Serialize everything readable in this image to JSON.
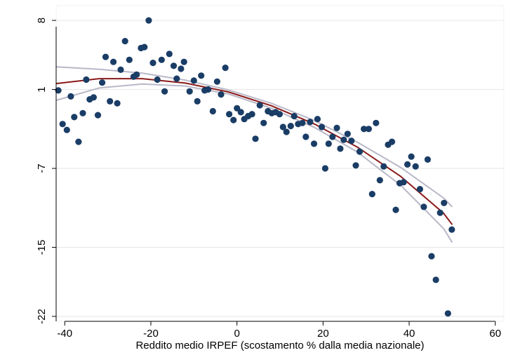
{
  "chart_data": {
    "type": "scatter",
    "title": "",
    "xlabel": "Reddito medio IRPEF (scostamento % dalla media nazionale)",
    "ylabel": "",
    "xlim": [
      -42,
      62
    ],
    "ylim": [
      -22.5,
      9.5
    ],
    "x_ticks": [
      -40,
      -20,
      0,
      20,
      40,
      60
    ],
    "y_ticks": [
      8,
      1,
      -7,
      -15,
      -22
    ],
    "grid": "horizontal",
    "legend": "none",
    "colors": {
      "points": "#1a3d66",
      "fit": "#8b1a1a",
      "ci": "#b8b8c8",
      "grid": "#e6e6e6"
    },
    "series": [
      {
        "kind": "points",
        "points": [
          [
            -41.5,
            0.9
          ],
          [
            -40.5,
            -2.5
          ],
          [
            -39.5,
            -3.1
          ],
          [
            -38.6,
            0.3
          ],
          [
            -37.8,
            -1.8
          ],
          [
            -36.8,
            -4.3
          ],
          [
            -35.8,
            -1.4
          ],
          [
            -35.0,
            2.0
          ],
          [
            -34.2,
            0.0
          ],
          [
            -33.3,
            0.2
          ],
          [
            -32.3,
            -1.6
          ],
          [
            -31.3,
            1.7
          ],
          [
            -30.5,
            4.3
          ],
          [
            -29.5,
            -0.2
          ],
          [
            -28.7,
            3.8
          ],
          [
            -27.8,
            -0.4
          ],
          [
            -27.0,
            3.0
          ],
          [
            -26.0,
            5.9
          ],
          [
            -25.0,
            4.0
          ],
          [
            -24.0,
            2.3
          ],
          [
            -23.3,
            2.5
          ],
          [
            -22.3,
            5.2
          ],
          [
            -21.5,
            5.3
          ],
          [
            -20.5,
            8.0
          ],
          [
            -19.5,
            3.7
          ],
          [
            -18.5,
            2.0
          ],
          [
            -17.5,
            4.0
          ],
          [
            -16.8,
            0.8
          ],
          [
            -15.7,
            4.6
          ],
          [
            -14.7,
            3.4
          ],
          [
            -14.0,
            2.1
          ],
          [
            -13.0,
            3.1
          ],
          [
            -12.3,
            3.8
          ],
          [
            -11.0,
            0.8
          ],
          [
            -10.0,
            1.9
          ],
          [
            -9.2,
            -0.2
          ],
          [
            -8.3,
            2.4
          ],
          [
            -7.5,
            0.9
          ],
          [
            -6.7,
            1.0
          ],
          [
            -5.6,
            -1.2
          ],
          [
            -4.6,
            1.8
          ],
          [
            -3.7,
            0.5
          ],
          [
            -2.7,
            3.2
          ],
          [
            -1.8,
            -1.5
          ],
          [
            -0.8,
            -2.1
          ],
          [
            0.0,
            -0.9
          ],
          [
            0.9,
            -1.3
          ],
          [
            1.7,
            -2.0
          ],
          [
            2.6,
            -1.7
          ],
          [
            3.5,
            -1.5
          ],
          [
            4.3,
            -4.0
          ],
          [
            5.3,
            -0.6
          ],
          [
            6.2,
            -2.4
          ],
          [
            7.2,
            -1.2
          ],
          [
            8.1,
            -1.4
          ],
          [
            9.0,
            -1.3
          ],
          [
            9.9,
            -1.5
          ],
          [
            10.7,
            -2.8
          ],
          [
            11.5,
            -3.3
          ],
          [
            12.5,
            -2.7
          ],
          [
            13.3,
            -1.7
          ],
          [
            14.2,
            -2.5
          ],
          [
            15.2,
            -2.4
          ],
          [
            16.0,
            -3.8
          ],
          [
            17.0,
            -2.3
          ],
          [
            17.9,
            -4.5
          ],
          [
            18.7,
            -2.0
          ],
          [
            19.7,
            -2.8
          ],
          [
            20.5,
            -7.0
          ],
          [
            21.3,
            -4.5
          ],
          [
            22.2,
            -3.8
          ],
          [
            23.2,
            -2.9
          ],
          [
            24.0,
            -5.0
          ],
          [
            24.8,
            -4.1
          ],
          [
            25.7,
            -3.5
          ],
          [
            26.6,
            -4.2
          ],
          [
            27.6,
            -6.7
          ],
          [
            28.5,
            -5.3
          ],
          [
            29.5,
            -3.0
          ],
          [
            30.6,
            -3.0
          ],
          [
            31.4,
            -9.6
          ],
          [
            32.3,
            -2.4
          ],
          [
            33.2,
            -8.2
          ],
          [
            34.1,
            -6.8
          ],
          [
            35.1,
            -4.6
          ],
          [
            36.0,
            -4.3
          ],
          [
            36.9,
            -11.2
          ],
          [
            37.8,
            -8.5
          ],
          [
            38.7,
            -8.4
          ],
          [
            39.6,
            -6.6
          ],
          [
            40.5,
            -5.8
          ],
          [
            41.5,
            -6.8
          ],
          [
            42.5,
            -9.1
          ],
          [
            43.4,
            -10.9
          ],
          [
            44.3,
            -6.1
          ],
          [
            45.2,
            -15.9
          ],
          [
            46.2,
            -18.3
          ],
          [
            47.2,
            -11.5
          ],
          [
            48.1,
            -10.5
          ],
          [
            49.0,
            -21.7
          ],
          [
            49.9,
            -13.2
          ]
        ]
      },
      {
        "kind": "fit",
        "points": [
          [
            -42,
            1.6
          ],
          [
            -32,
            2.1
          ],
          [
            -22,
            2.1
          ],
          [
            -12,
            1.65
          ],
          [
            -2,
            0.75
          ],
          [
            8,
            -0.65
          ],
          [
            18,
            -2.5
          ],
          [
            28,
            -4.85
          ],
          [
            38,
            -7.8
          ],
          [
            48,
            -11.55
          ],
          [
            50,
            -12.7
          ]
        ]
      },
      {
        "kind": "ci-upper",
        "points": [
          [
            -42,
            3.3
          ],
          [
            -32,
            3.05
          ],
          [
            -22,
            2.65
          ],
          [
            -12,
            1.95
          ],
          [
            -2,
            0.95
          ],
          [
            8,
            -0.4
          ],
          [
            18,
            -2.15
          ],
          [
            28,
            -4.35
          ],
          [
            38,
            -6.9
          ],
          [
            48,
            -10.0
          ],
          [
            50,
            -10.9
          ]
        ]
      },
      {
        "kind": "ci-lower",
        "points": [
          [
            -42,
            -0.1
          ],
          [
            -32,
            1.15
          ],
          [
            -22,
            1.55
          ],
          [
            -12,
            1.35
          ],
          [
            -2,
            0.55
          ],
          [
            8,
            -0.9
          ],
          [
            18,
            -2.85
          ],
          [
            28,
            -5.35
          ],
          [
            38,
            -8.7
          ],
          [
            48,
            -13.1
          ],
          [
            50,
            -14.5
          ]
        ]
      }
    ]
  }
}
